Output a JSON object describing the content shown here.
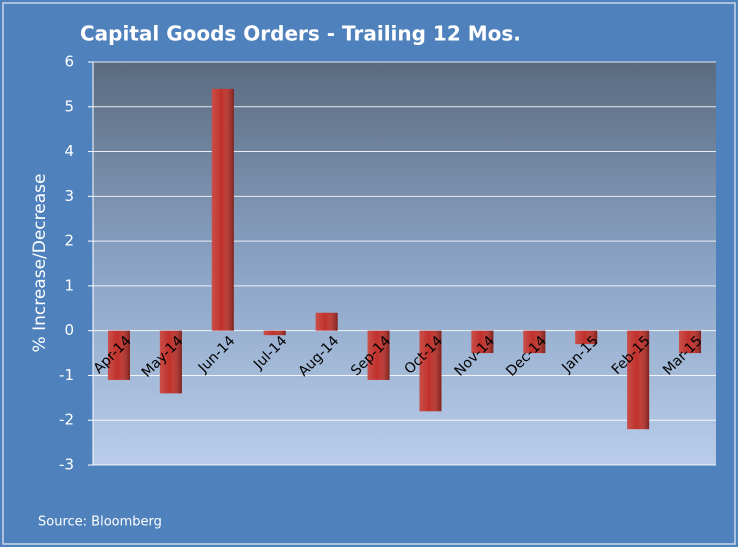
{
  "chart_data": {
    "type": "bar",
    "title": "Capital Goods Orders - Trailing 12 Mos.",
    "y_label": "% Increase/Decrease",
    "source": "Source: Bloomberg",
    "categories": [
      "Apr-14",
      "May-14",
      "Jun-14",
      "Jul-14",
      "Aug-14",
      "Sep-14",
      "Oct-14",
      "Nov-14",
      "Dec-14",
      "Jan-15",
      "Feb-15",
      "Mar-15"
    ],
    "values": [
      -1.1,
      -1.4,
      5.4,
      -0.1,
      0.4,
      -1.1,
      -1.8,
      -0.5,
      -0.5,
      -0.3,
      -2.2,
      -0.5
    ],
    "color": "#c0302a",
    "ylim": [
      -3,
      6
    ],
    "yticks": [
      -3,
      -2,
      -1,
      0,
      1,
      2,
      3,
      4,
      5,
      6
    ],
    "grid": true
  }
}
